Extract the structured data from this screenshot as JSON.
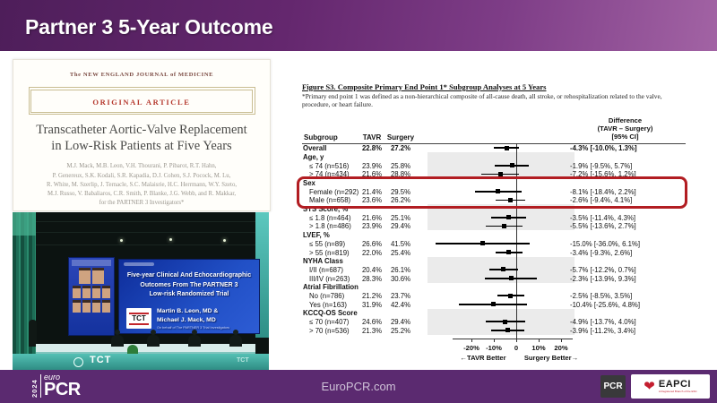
{
  "banner": {
    "title": "Partner 3  5-Year Outcome"
  },
  "nejm": {
    "masthead": "The NEW ENGLAND JOURNAL of MEDICINE",
    "kicker": "ORIGINAL ARTICLE",
    "title_line1": "Transcatheter Aortic-Valve Replacement",
    "title_line2": "in Low-Risk Patients at Five Years",
    "authors": [
      "M.J. Mack, M.B. Leon, V.H. Thourani, P. Pibarot, R.T. Hahn,",
      "P. Genereux, S.K. Kodali, S.R. Kapadia, D.J. Cohen, S.J. Pocock, M. Lu,",
      "R. White, M. Szerlip, J. Ternacle, S.C. Malaisrie, H.C. Herrmann, W.Y. Szeto,",
      "M.J. Russo, V. Babaliaros, C.R. Smith, P. Blanke, J.G. Webb, and R. Makkar,",
      "for the PARTNER 3 Investigators*"
    ]
  },
  "photo": {
    "screen_title": [
      "Five-year Clinical And Echocardiographic",
      "Outcomes From The PARTNER 3",
      "Low-risk Randomized Trial"
    ],
    "presenter_line1": "Martin B. Leon, MD &",
    "presenter_line2": "Michael J. Mack, MD",
    "behalf": "On behalf of The PARTNER 3 Trial Investigators",
    "tct_logo": "TCT",
    "stage_tct": "TCT",
    "stage_tct_right": "TCT"
  },
  "figure": {
    "title": "Figure S3. Composite Primary End Point 1* Subgroup Analyses at 5 Years",
    "subtitle": "*Primary end point 1 was defined as a non-hierarchical composite of all-cause death, all stroke, or rehospitalization related to the valve, procedure, or heart failure.",
    "col_subgroup": "Subgroup",
    "col_tavr": "TAVR",
    "col_surgery": "Surgery",
    "col_diff": [
      "Difference",
      "(TAVR – Surgery)",
      "[95% CI]"
    ],
    "better_left": "←TAVR Better",
    "better_right": "Surgery Better→"
  },
  "chart_data": {
    "type": "scatter",
    "subtype": "forest-plot",
    "title": "Composite Primary End Point 1 Subgroup Analyses at 5 Years",
    "xlabel": "Difference (TAVR – Surgery), percentage points, with 95% CI",
    "xlim": [
      -40,
      26
    ],
    "ticks": [
      {
        "v": -20,
        "label": "-20%"
      },
      {
        "v": -10,
        "label": "-10%"
      },
      {
        "v": 0,
        "label": "0"
      },
      {
        "v": 10,
        "label": "10%"
      },
      {
        "v": 20,
        "label": "20%"
      }
    ],
    "rows": [
      {
        "kind": "data",
        "label": "Overall",
        "bold": true,
        "tavr": "22.8%",
        "surgery": "27.2%",
        "diff": -4.3,
        "ci": [
          -10.0,
          1.3
        ],
        "diff_label": "-4.3% [-10.0%, 1.3%]",
        "band": false,
        "highlight": false
      },
      {
        "kind": "header",
        "label": "Age, y",
        "band": true,
        "highlight": false
      },
      {
        "kind": "data",
        "label": "≤ 74 (n=516)",
        "tavr": "23.9%",
        "surgery": "25.8%",
        "diff": -1.9,
        "ci": [
          -9.5,
          5.7
        ],
        "diff_label": "-1.9% [-9.5%, 5.7%]",
        "band": true,
        "highlight": false
      },
      {
        "kind": "data",
        "label": "> 74 (n=434)",
        "tavr": "21.6%",
        "surgery": "28.8%",
        "diff": -7.2,
        "ci": [
          -15.6,
          1.2
        ],
        "diff_label": "-7.2% [-15.6%, 1.2%]",
        "band": true,
        "highlight": false
      },
      {
        "kind": "header",
        "label": "Sex",
        "band": false,
        "highlight": true
      },
      {
        "kind": "data",
        "label": "Female (n=292)",
        "tavr": "21.4%",
        "surgery": "29.5%",
        "diff": -8.1,
        "ci": [
          -18.4,
          2.2
        ],
        "diff_label": "-8.1% [-18.4%, 2.2%]",
        "band": false,
        "highlight": true
      },
      {
        "kind": "data",
        "label": "Male (n=658)",
        "tavr": "23.6%",
        "surgery": "26.2%",
        "diff": -2.6,
        "ci": [
          -9.4,
          4.1
        ],
        "diff_label": "-2.6% [-9.4%, 4.1%]",
        "band": false,
        "highlight": true
      },
      {
        "kind": "header",
        "label": "STS Score, %",
        "band": true,
        "highlight": false
      },
      {
        "kind": "data",
        "label": "≤ 1.8 (n=464)",
        "tavr": "21.6%",
        "surgery": "25.1%",
        "diff": -3.5,
        "ci": [
          -11.4,
          4.3
        ],
        "diff_label": "-3.5% [-11.4%, 4.3%]",
        "band": true,
        "highlight": false
      },
      {
        "kind": "data",
        "label": "> 1.8 (n=486)",
        "tavr": "23.9%",
        "surgery": "29.4%",
        "diff": -5.5,
        "ci": [
          -13.6,
          2.7
        ],
        "diff_label": "-5.5% [-13.6%, 2.7%]",
        "band": true,
        "highlight": false
      },
      {
        "kind": "header",
        "label": "LVEF, %",
        "band": false,
        "highlight": false
      },
      {
        "kind": "data",
        "label": "≤ 55 (n=89)",
        "tavr": "26.6%",
        "surgery": "41.5%",
        "diff": -15.0,
        "ci": [
          -36.0,
          6.1
        ],
        "diff_label": "-15.0% [-36.0%, 6.1%]",
        "band": false,
        "highlight": false
      },
      {
        "kind": "data",
        "label": "> 55 (n=819)",
        "tavr": "22.0%",
        "surgery": "25.4%",
        "diff": -3.4,
        "ci": [
          -9.3,
          2.6
        ],
        "diff_label": "-3.4% [-9.3%, 2.6%]",
        "band": false,
        "highlight": false
      },
      {
        "kind": "header",
        "label": "NYHA Class",
        "band": true,
        "highlight": false
      },
      {
        "kind": "data",
        "label": "I/II (n=687)",
        "tavr": "20.4%",
        "surgery": "26.1%",
        "diff": -5.7,
        "ci": [
          -12.2,
          0.7
        ],
        "diff_label": "-5.7% [-12.2%, 0.7%]",
        "band": true,
        "highlight": false
      },
      {
        "kind": "data",
        "label": "III/IV (n=263)",
        "tavr": "28.3%",
        "surgery": "30.6%",
        "diff": -2.3,
        "ci": [
          -13.9,
          9.3
        ],
        "diff_label": "-2.3% [-13.9%, 9.3%]",
        "band": true,
        "highlight": false
      },
      {
        "kind": "header",
        "label": "Atrial Fibrillation",
        "band": false,
        "highlight": false
      },
      {
        "kind": "data",
        "label": "No (n=786)",
        "tavr": "21.2%",
        "surgery": "23.7%",
        "diff": -2.5,
        "ci": [
          -8.5,
          3.5
        ],
        "diff_label": "-2.5% [-8.5%, 3.5%]",
        "band": false,
        "highlight": false
      },
      {
        "kind": "data",
        "label": "Yes (n=163)",
        "tavr": "31.9%",
        "surgery": "42.4%",
        "diff": -10.4,
        "ci": [
          -25.6,
          4.8
        ],
        "diff_label": "-10.4% [-25.6%, 4.8%]",
        "band": false,
        "highlight": false
      },
      {
        "kind": "header",
        "label": "KCCQ-OS Score",
        "band": true,
        "highlight": false
      },
      {
        "kind": "data",
        "label": "≤ 70 (n=407)",
        "tavr": "24.6%",
        "surgery": "29.4%",
        "diff": -4.9,
        "ci": [
          -13.7,
          4.0
        ],
        "diff_label": "-4.9% [-13.7%, 4.0%]",
        "band": true,
        "highlight": false
      },
      {
        "kind": "data",
        "label": "> 70 (n=536)",
        "tavr": "21.3%",
        "surgery": "25.2%",
        "diff": -3.9,
        "ci": [
          -11.2,
          3.4
        ],
        "diff_label": "-3.9% [-11.2%, 3.4%]",
        "band": true,
        "highlight": false
      }
    ],
    "legend_colors": {
      "marker": "#000000",
      "highlight_box": "#b21d22",
      "band": "#ebebeb"
    }
  },
  "footer": {
    "year": "2024",
    "euro": "euro",
    "pcr": "PCR",
    "site": "EuroPCR.com",
    "pcr_box": "PCR",
    "eapci": "EAPCI",
    "eapci_tagline": "A Registered Branch of the ESC",
    "bg_color": "#5b2a70"
  }
}
